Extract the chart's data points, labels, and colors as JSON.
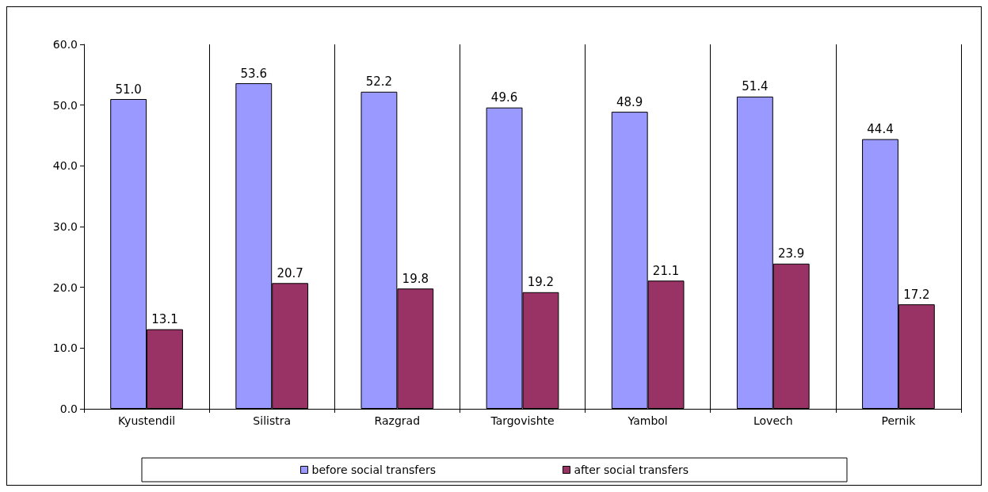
{
  "chart_data": {
    "type": "bar",
    "categories": [
      "Kyustendil",
      "Silistra",
      "Razgrad",
      "Targovishte",
      "Yambol",
      "Lovech",
      "Pernik"
    ],
    "series": [
      {
        "name": "before social transfers",
        "color": "#9999ff",
        "values": [
          51.0,
          53.6,
          52.2,
          49.6,
          48.9,
          51.4,
          44.4
        ],
        "value_labels": [
          "51.0",
          "53.6",
          "52.2",
          "49.6",
          "48.9",
          "51.4",
          "44.4"
        ]
      },
      {
        "name": "after social transfers",
        "color": "#993366",
        "values": [
          13.1,
          20.7,
          19.8,
          19.2,
          21.1,
          23.9,
          17.2
        ],
        "value_labels": [
          "13.1",
          "20.7",
          "19.8",
          "19.2",
          "21.1",
          "23.9",
          "17.2"
        ]
      }
    ],
    "ylim": [
      0,
      60
    ],
    "yticks": [
      {
        "value": 0,
        "label": "0.0"
      },
      {
        "value": 10,
        "label": "10.0"
      },
      {
        "value": 20,
        "label": "20.0"
      },
      {
        "value": 30,
        "label": "30.0"
      },
      {
        "value": 40,
        "label": "40.0"
      },
      {
        "value": 50,
        "label": "50.0"
      },
      {
        "value": 60,
        "label": "60.0"
      }
    ],
    "grid": "x",
    "legend": "bottom"
  }
}
